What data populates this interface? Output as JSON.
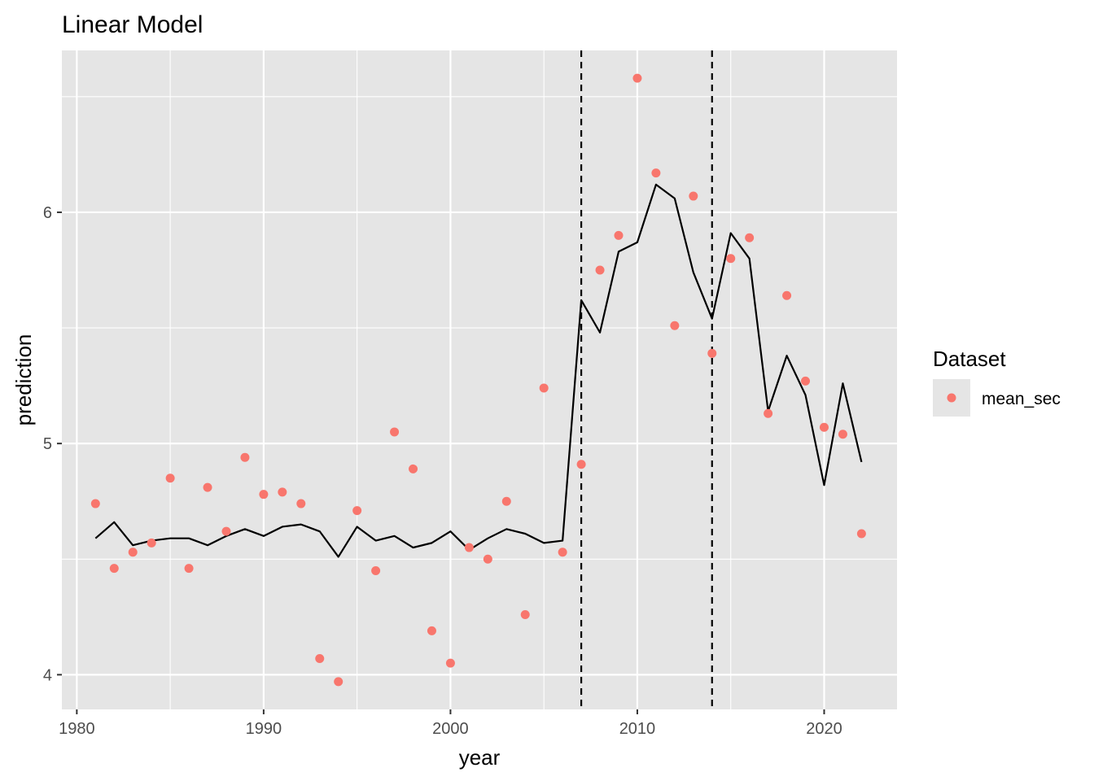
{
  "chart_data": {
    "type": "scatter",
    "title": "Linear Model",
    "xlabel": "year",
    "ylabel": "prediction",
    "xlim": [
      1979.2,
      2023.9
    ],
    "ylim": [
      3.85,
      6.7
    ],
    "x_ticks": [
      1980,
      1990,
      2000,
      2010,
      2020
    ],
    "x_tick_labels": [
      "1980",
      "1990",
      "2000",
      "2010",
      "2020"
    ],
    "y_ticks": [
      4,
      5,
      6
    ],
    "y_tick_labels": [
      "4",
      "5",
      "6"
    ],
    "grid": true,
    "legend": {
      "title": "Dataset",
      "position": "right",
      "entries": [
        "mean_sec"
      ]
    },
    "colors": {
      "points": "#F8766D",
      "line": "#000000",
      "vlines": "#000000",
      "panel": "#E5E5E5",
      "grid": "#FFFFFF"
    },
    "vlines": [
      2007,
      2014
    ],
    "series": [
      {
        "name": "mean_sec",
        "kind": "points",
        "x": [
          1981,
          1982,
          1983,
          1984,
          1985,
          1986,
          1987,
          1988,
          1989,
          1990,
          1991,
          1992,
          1993,
          1994,
          1995,
          1996,
          1997,
          1998,
          1999,
          2000,
          2001,
          2002,
          2003,
          2004,
          2005,
          2006,
          2007,
          2008,
          2009,
          2010,
          2011,
          2012,
          2013,
          2014,
          2015,
          2016,
          2017,
          2018,
          2019,
          2020,
          2021,
          2022
        ],
        "y": [
          4.74,
          4.46,
          4.53,
          4.57,
          4.85,
          4.46,
          4.81,
          4.62,
          4.94,
          4.78,
          4.79,
          4.74,
          4.07,
          3.97,
          4.71,
          4.45,
          5.05,
          4.89,
          4.19,
          4.05,
          4.55,
          4.5,
          4.75,
          4.26,
          5.24,
          4.53,
          4.91,
          5.75,
          5.9,
          6.58,
          6.17,
          5.51,
          6.07,
          5.39,
          5.8,
          5.89,
          5.13,
          5.64,
          5.27,
          5.07,
          5.04,
          4.61
        ]
      },
      {
        "kind": "line",
        "x": [
          1981,
          1982,
          1983,
          1984,
          1985,
          1986,
          1987,
          1988,
          1989,
          1990,
          1991,
          1992,
          1993,
          1994,
          1995,
          1996,
          1997,
          1998,
          1999,
          2000,
          2001,
          2002,
          2003,
          2004,
          2005,
          2006,
          2007,
          2008,
          2009,
          2010,
          2011,
          2012,
          2013,
          2014,
          2015,
          2016,
          2017,
          2018,
          2019,
          2020,
          2021,
          2022
        ],
        "y": [
          4.59,
          4.66,
          4.56,
          4.58,
          4.59,
          4.59,
          4.56,
          4.6,
          4.63,
          4.6,
          4.64,
          4.65,
          4.62,
          4.51,
          4.64,
          4.58,
          4.6,
          4.55,
          4.57,
          4.62,
          4.54,
          4.59,
          4.63,
          4.61,
          4.57,
          4.58,
          5.62,
          5.48,
          5.83,
          5.87,
          6.12,
          6.06,
          5.74,
          5.54,
          5.91,
          5.8,
          5.14,
          5.38,
          5.21,
          4.82,
          5.26,
          4.92
        ]
      }
    ]
  }
}
